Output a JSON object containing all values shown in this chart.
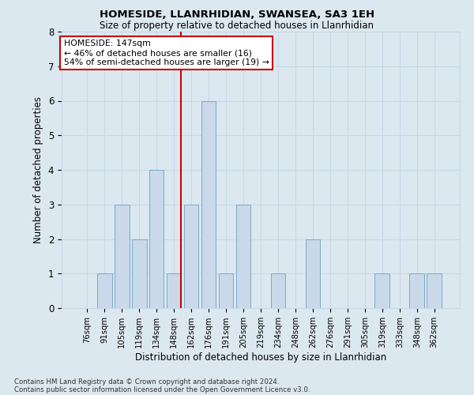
{
  "title": "HOMESIDE, LLANRHIDIAN, SWANSEA, SA3 1EH",
  "subtitle": "Size of property relative to detached houses in Llanrhidian",
  "xlabel": "Distribution of detached houses by size in Llanrhidian",
  "ylabel": "Number of detached properties",
  "categories": [
    "76sqm",
    "91sqm",
    "105sqm",
    "119sqm",
    "134sqm",
    "148sqm",
    "162sqm",
    "176sqm",
    "191sqm",
    "205sqm",
    "219sqm",
    "234sqm",
    "248sqm",
    "262sqm",
    "276sqm",
    "291sqm",
    "305sqm",
    "319sqm",
    "333sqm",
    "348sqm",
    "362sqm"
  ],
  "values": [
    0,
    1,
    3,
    2,
    4,
    1,
    3,
    6,
    1,
    3,
    0,
    1,
    0,
    2,
    0,
    0,
    0,
    1,
    0,
    1,
    1
  ],
  "bar_color": "#c9d9ea",
  "bar_edge_color": "#7aaac8",
  "highlight_index": 5,
  "highlight_line_color": "#cc0000",
  "annotation_text": "HOMESIDE: 147sqm\n← 46% of detached houses are smaller (16)\n54% of semi-detached houses are larger (19) →",
  "annotation_box_facecolor": "#ffffff",
  "annotation_box_edgecolor": "#cc0000",
  "ylim": [
    0,
    8
  ],
  "yticks": [
    0,
    1,
    2,
    3,
    4,
    5,
    6,
    7,
    8
  ],
  "grid_color": "#c8d8e8",
  "background_color": "#dce8f0",
  "footer_line1": "Contains HM Land Registry data © Crown copyright and database right 2024.",
  "footer_line2": "Contains public sector information licensed under the Open Government Licence v3.0."
}
